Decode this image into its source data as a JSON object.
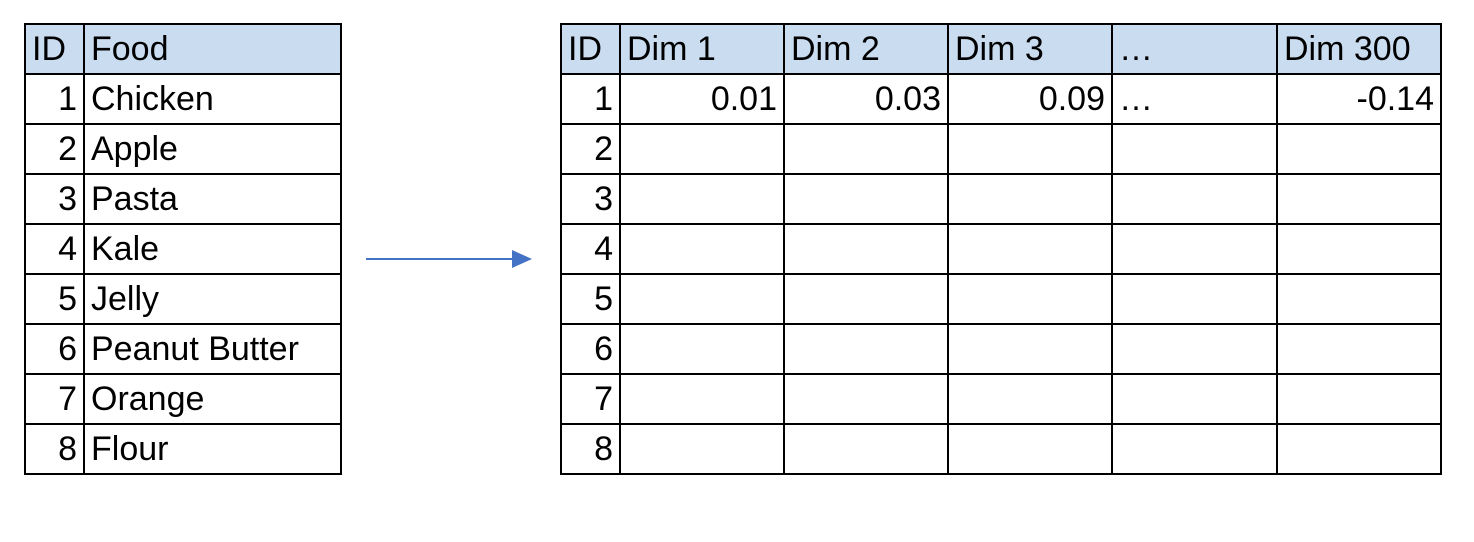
{
  "food_table": {
    "headers": [
      "ID",
      "Food"
    ],
    "rows": [
      {
        "id": "1",
        "food": "Chicken"
      },
      {
        "id": "2",
        "food": "Apple"
      },
      {
        "id": "3",
        "food": "Pasta"
      },
      {
        "id": "4",
        "food": "Kale"
      },
      {
        "id": "5",
        "food": "Jelly"
      },
      {
        "id": "6",
        "food": "Peanut Butter"
      },
      {
        "id": "7",
        "food": "Orange"
      },
      {
        "id": "8",
        "food": "Flour"
      }
    ]
  },
  "embedding_table": {
    "headers": [
      "ID",
      "Dim 1",
      "Dim 2",
      "Dim 3",
      "…",
      "Dim 300"
    ],
    "rows": [
      [
        "1",
        "0.01",
        "0.03",
        "0.09",
        "…",
        "-0.14"
      ],
      [
        "2",
        "",
        "",
        "",
        "",
        ""
      ],
      [
        "3",
        "",
        "",
        "",
        "",
        ""
      ],
      [
        "4",
        "",
        "",
        "",
        "",
        ""
      ],
      [
        "5",
        "",
        "",
        "",
        "",
        ""
      ],
      [
        "6",
        "",
        "",
        "",
        "",
        ""
      ],
      [
        "7",
        "",
        "",
        "",
        "",
        ""
      ],
      [
        "8",
        "",
        "",
        "",
        "",
        ""
      ]
    ]
  },
  "colors": {
    "header_fill": "#c9dcf0",
    "arrow": "#4472c4"
  }
}
